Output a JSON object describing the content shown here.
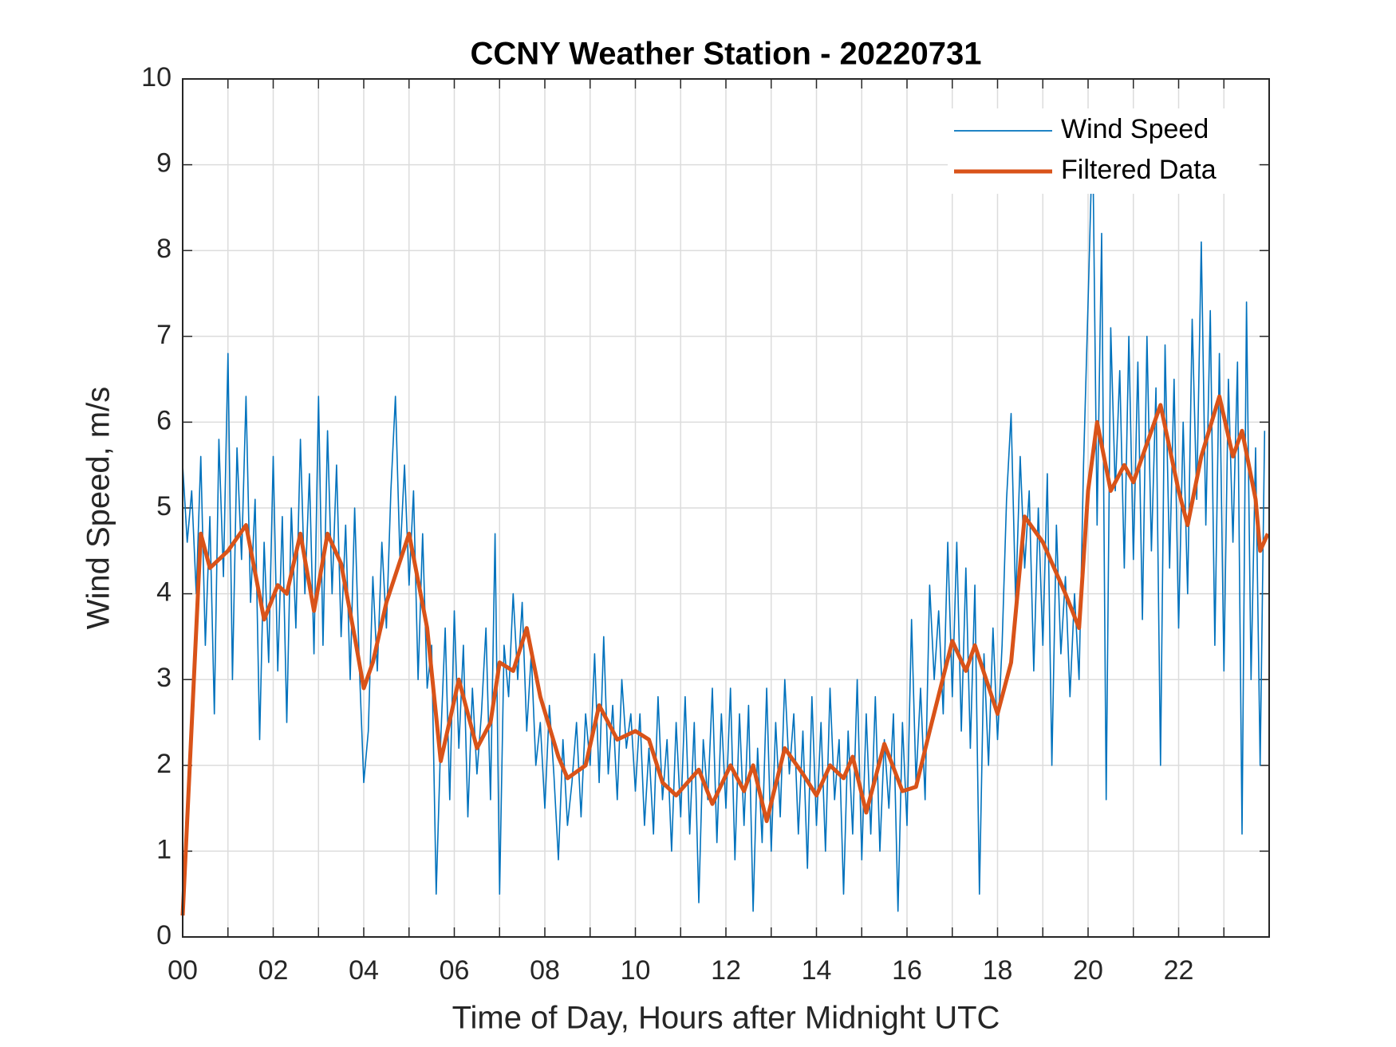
{
  "chart_data": {
    "type": "line",
    "title": "CCNY Weather Station - 20220731",
    "xlabel": "Time of Day, Hours after Midnight UTC",
    "ylabel": "Wind Speed, m/s",
    "xlim": [
      0,
      24
    ],
    "ylim": [
      0,
      10
    ],
    "xticks": [
      {
        "value": 0,
        "label": "00"
      },
      {
        "value": 2,
        "label": "02"
      },
      {
        "value": 4,
        "label": "04"
      },
      {
        "value": 6,
        "label": "06"
      },
      {
        "value": 8,
        "label": "08"
      },
      {
        "value": 10,
        "label": "10"
      },
      {
        "value": 12,
        "label": "12"
      },
      {
        "value": 14,
        "label": "14"
      },
      {
        "value": 16,
        "label": "16"
      },
      {
        "value": 18,
        "label": "18"
      },
      {
        "value": 20,
        "label": "20"
      },
      {
        "value": 22,
        "label": "22"
      }
    ],
    "xminor_ticks": [
      1,
      3,
      5,
      7,
      9,
      11,
      13,
      15,
      17,
      19,
      21,
      23
    ],
    "yticks": [
      0,
      1,
      2,
      3,
      4,
      5,
      6,
      7,
      8,
      9,
      10
    ],
    "grid": true,
    "legend": "upper right",
    "series": [
      {
        "name": "Wind Speed",
        "color": "#0072bd",
        "x": [
          0,
          0.1,
          0.2,
          0.3,
          0.4,
          0.5,
          0.6,
          0.7,
          0.8,
          0.9,
          1,
          1.1,
          1.2,
          1.3,
          1.4,
          1.5,
          1.6,
          1.7,
          1.8,
          1.9,
          2,
          2.1,
          2.2,
          2.3,
          2.4,
          2.5,
          2.6,
          2.7,
          2.8,
          2.9,
          3,
          3.1,
          3.2,
          3.3,
          3.4,
          3.5,
          3.6,
          3.7,
          3.8,
          3.9,
          4,
          4.1,
          4.2,
          4.3,
          4.4,
          4.5,
          4.6,
          4.7,
          4.8,
          4.9,
          5,
          5.1,
          5.2,
          5.3,
          5.4,
          5.5,
          5.6,
          5.7,
          5.8,
          5.9,
          6,
          6.1,
          6.2,
          6.3,
          6.4,
          6.5,
          6.6,
          6.7,
          6.8,
          6.9,
          7,
          7.1,
          7.2,
          7.3,
          7.4,
          7.5,
          7.6,
          7.7,
          7.8,
          7.9,
          8,
          8.1,
          8.2,
          8.3,
          8.4,
          8.5,
          8.6,
          8.7,
          8.8,
          8.9,
          9,
          9.1,
          9.2,
          9.3,
          9.4,
          9.5,
          9.6,
          9.7,
          9.8,
          9.9,
          10,
          10.1,
          10.2,
          10.3,
          10.4,
          10.5,
          10.6,
          10.7,
          10.8,
          10.9,
          11,
          11.1,
          11.2,
          11.3,
          11.4,
          11.5,
          11.6,
          11.7,
          11.8,
          11.9,
          12,
          12.1,
          12.2,
          12.3,
          12.4,
          12.5,
          12.6,
          12.7,
          12.8,
          12.9,
          13,
          13.1,
          13.2,
          13.3,
          13.4,
          13.5,
          13.6,
          13.7,
          13.8,
          13.9,
          14,
          14.1,
          14.2,
          14.3,
          14.4,
          14.5,
          14.6,
          14.7,
          14.8,
          14.9,
          15,
          15.1,
          15.2,
          15.3,
          15.4,
          15.5,
          15.6,
          15.7,
          15.8,
          15.9,
          16,
          16.1,
          16.2,
          16.3,
          16.4,
          16.5,
          16.6,
          16.7,
          16.8,
          16.9,
          17,
          17.1,
          17.2,
          17.3,
          17.4,
          17.5,
          17.6,
          17.7,
          17.8,
          17.9,
          18,
          18.1,
          18.2,
          18.3,
          18.4,
          18.5,
          18.6,
          18.7,
          18.8,
          18.9,
          19,
          19.1,
          19.2,
          19.3,
          19.4,
          19.5,
          19.6,
          19.7,
          19.8,
          19.9,
          20,
          20.1,
          20.2,
          20.3,
          20.4,
          20.5,
          20.6,
          20.7,
          20.8,
          20.9,
          21,
          21.1,
          21.2,
          21.3,
          21.4,
          21.5,
          21.6,
          21.7,
          21.8,
          21.9,
          22,
          22.1,
          22.2,
          22.3,
          22.4,
          22.5,
          22.6,
          22.7,
          22.8,
          22.9,
          23,
          23.1,
          23.2,
          23.3,
          23.4,
          23.5,
          23.6,
          23.7,
          23.8,
          23.9
        ],
        "values": [
          5.5,
          4.6,
          5.2,
          4.0,
          5.6,
          3.4,
          4.9,
          2.6,
          5.8,
          4.2,
          6.8,
          3.0,
          5.7,
          4.4,
          6.3,
          3.9,
          5.1,
          2.3,
          4.6,
          3.2,
          5.6,
          3.1,
          4.9,
          2.5,
          5.0,
          3.6,
          5.8,
          4.0,
          5.4,
          3.3,
          6.3,
          3.4,
          5.9,
          4.0,
          5.5,
          3.5,
          4.8,
          3.0,
          5.0,
          3.2,
          1.8,
          2.4,
          4.2,
          3.1,
          4.6,
          3.6,
          5.2,
          6.3,
          4.4,
          5.5,
          4.1,
          5.2,
          3.0,
          4.7,
          2.9,
          3.4,
          0.5,
          2.3,
          3.6,
          1.6,
          3.8,
          2.2,
          3.4,
          1.4,
          2.9,
          1.9,
          2.6,
          3.6,
          1.6,
          4.7,
          0.5,
          3.4,
          2.8,
          4.0,
          3.0,
          3.9,
          2.4,
          3.3,
          2.0,
          2.5,
          1.5,
          2.7,
          1.9,
          0.9,
          2.3,
          1.3,
          1.8,
          2.5,
          1.4,
          2.6,
          2.0,
          3.3,
          1.8,
          3.5,
          1.9,
          2.7,
          1.6,
          3.0,
          2.2,
          2.6,
          1.7,
          2.6,
          1.3,
          2.2,
          1.2,
          2.8,
          1.6,
          2.3,
          1.0,
          2.5,
          1.4,
          2.8,
          1.2,
          2.5,
          0.4,
          2.3,
          1.6,
          2.9,
          1.1,
          2.6,
          1.5,
          2.9,
          0.9,
          2.6,
          1.3,
          2.7,
          0.3,
          2.2,
          1.1,
          2.9,
          1.0,
          2.5,
          1.4,
          3.0,
          1.9,
          2.6,
          1.2,
          2.4,
          0.8,
          2.8,
          1.3,
          2.5,
          1.0,
          2.9,
          1.6,
          2.3,
          0.5,
          2.4,
          1.2,
          3.0,
          0.9,
          2.6,
          1.2,
          2.8,
          1.0,
          2.3,
          1.5,
          2.6,
          0.3,
          2.5,
          1.3,
          3.7,
          1.8,
          2.9,
          1.6,
          4.1,
          3.0,
          3.8,
          2.6,
          4.6,
          2.8,
          4.6,
          2.4,
          4.3,
          2.2,
          4.1,
          0.5,
          3.3,
          2.0,
          3.6,
          2.3,
          3.4,
          5.1,
          6.1,
          3.9,
          5.6,
          4.3,
          5.2,
          3.1,
          5.0,
          3.4,
          5.4,
          2.0,
          4.8,
          3.3,
          4.2,
          2.8,
          4.0,
          3.0,
          5.5,
          7.4,
          9.4,
          4.8,
          8.2,
          1.6,
          7.1,
          5.2,
          6.6,
          4.3,
          7.0,
          4.4,
          6.7,
          3.7,
          7.0,
          4.5,
          6.4,
          2.0,
          6.9,
          4.3,
          6.5,
          3.6,
          6.0,
          4.0,
          7.2,
          5.1,
          8.1,
          4.8,
          7.3,
          3.4,
          6.8,
          3.1,
          6.5,
          4.6,
          6.7,
          1.2,
          7.4,
          3.0,
          5.7,
          2.0,
          5.9
        ]
      },
      {
        "name": "Filtered Data",
        "color": "#d95319",
        "x": [
          0,
          0.4,
          0.6,
          1.0,
          1.4,
          1.8,
          2.1,
          2.3,
          2.6,
          2.9,
          3.2,
          3.5,
          3.8,
          4.0,
          4.2,
          4.5,
          5.0,
          5.4,
          5.7,
          6.1,
          6.5,
          6.8,
          7.0,
          7.3,
          7.6,
          7.9,
          8.3,
          8.5,
          8.9,
          9.2,
          9.6,
          10.0,
          10.3,
          10.6,
          10.9,
          11.4,
          11.7,
          12.1,
          12.4,
          12.6,
          12.9,
          13.3,
          13.7,
          14.0,
          14.3,
          14.6,
          14.8,
          15.1,
          15.5,
          15.9,
          16.2,
          16.5,
          17.0,
          17.3,
          17.5,
          18.0,
          18.3,
          18.6,
          19.0,
          19.5,
          19.8,
          20.0,
          20.2,
          20.5,
          20.8,
          21.0,
          21.6,
          22.0,
          22.2,
          22.5,
          22.9,
          23.2,
          23.4,
          23.7,
          23.8,
          23.97
        ],
        "values": [
          0.25,
          4.7,
          4.3,
          4.5,
          4.8,
          3.7,
          4.1,
          4.0,
          4.7,
          3.8,
          4.7,
          4.35,
          3.5,
          2.9,
          3.2,
          3.9,
          4.7,
          3.6,
          2.05,
          3.0,
          2.2,
          2.5,
          3.2,
          3.1,
          3.6,
          2.8,
          2.1,
          1.85,
          2.0,
          2.7,
          2.3,
          2.4,
          2.3,
          1.8,
          1.65,
          1.95,
          1.55,
          2.0,
          1.7,
          2.0,
          1.35,
          2.2,
          1.9,
          1.65,
          2.0,
          1.85,
          2.1,
          1.45,
          2.25,
          1.7,
          1.75,
          2.4,
          3.45,
          3.1,
          3.4,
          2.6,
          3.2,
          4.9,
          4.6,
          4.0,
          3.6,
          5.2,
          6.0,
          5.2,
          5.5,
          5.3,
          6.2,
          5.2,
          4.8,
          5.6,
          6.3,
          5.6,
          5.9,
          5.1,
          4.5,
          4.7
        ]
      }
    ]
  }
}
